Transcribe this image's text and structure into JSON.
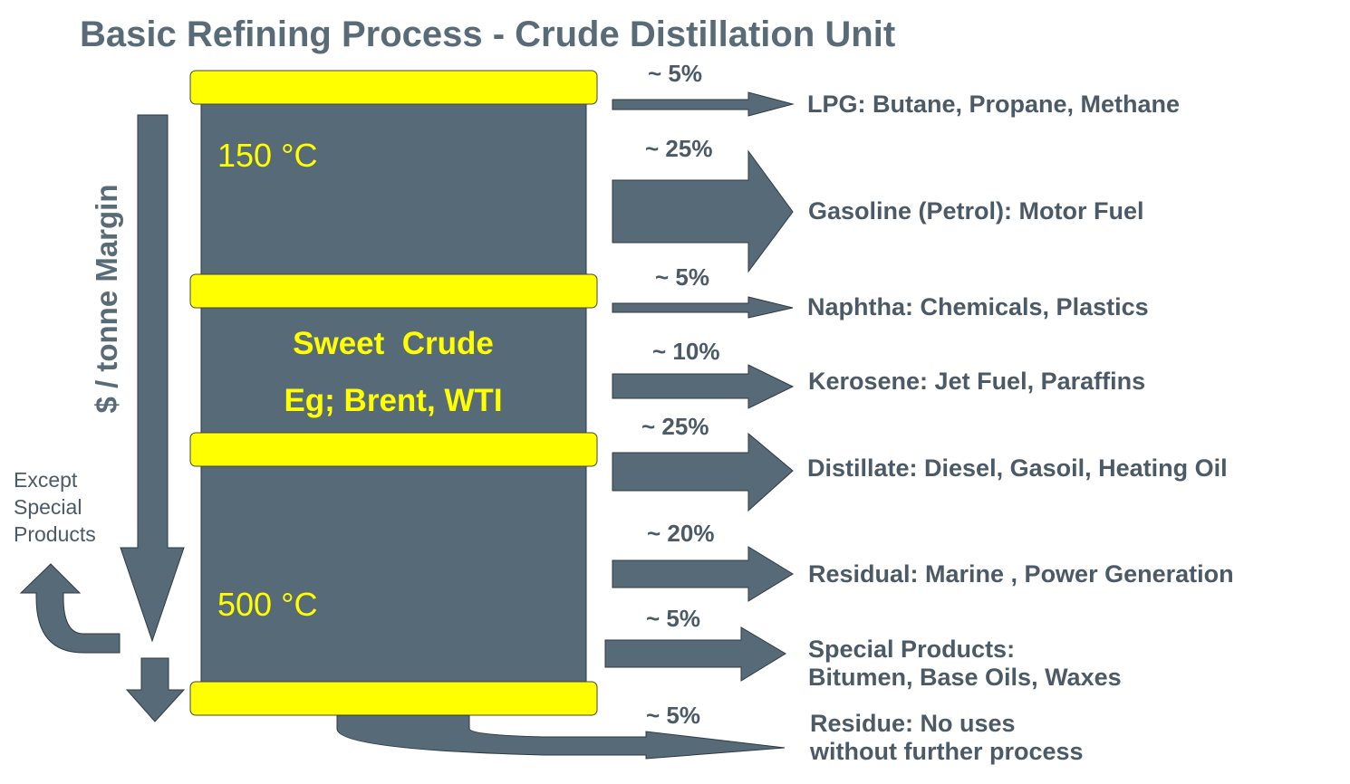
{
  "title": "Basic Refining Process - Crude Distillation Unit",
  "column": {
    "top_temp": "150 °C",
    "bottom_temp": "500 °C",
    "crude_name": "Sweet  Crude",
    "crude_examples": "Eg; Brent, WTI"
  },
  "margin_label": "$ / tonne Margin",
  "except_lines": [
    "Except",
    "Special",
    "Products"
  ],
  "fractions": [
    {
      "pct": "~ 5%",
      "product_lines": [
        "LPG: Butane, Propane, Methane"
      ]
    },
    {
      "pct": "~ 25%",
      "product_lines": [
        "Gasoline (Petrol): Motor Fuel"
      ]
    },
    {
      "pct": "~ 5%",
      "product_lines": [
        "Naphtha: Chemicals, Plastics"
      ]
    },
    {
      "pct": "~ 10%",
      "product_lines": [
        "Kerosene: Jet Fuel, Paraffins"
      ]
    },
    {
      "pct": "~ 25%",
      "product_lines": [
        "Distillate: Diesel, Gasoil, Heating Oil"
      ]
    },
    {
      "pct": "~ 20%",
      "product_lines": [
        "Residual: Marine , Power Generation"
      ]
    },
    {
      "pct": "~ 5%",
      "product_lines": [
        "Special Products:",
        "Bitumen, Base Oils, Waxes"
      ]
    },
    {
      "pct": "~ 5%",
      "product_lines": [
        "Residue: No uses",
        "without further process"
      ]
    }
  ],
  "colors": {
    "column": "#566a78",
    "band": "#ffff00",
    "arrow": "#566a78",
    "text": "#4b5a66"
  }
}
